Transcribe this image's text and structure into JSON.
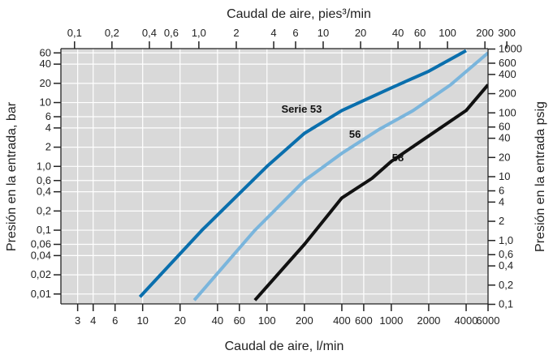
{
  "chart_data": {
    "type": "line",
    "title": "",
    "xlabel_bottom": "Caudal de aire, l/min",
    "xlabel_top": "Caudal de aire, pies³/min",
    "ylabel_left": "Presión en la entrada, bar",
    "ylabel_right": "Presión en la entrada psig",
    "xscale": "log",
    "yscale": "log",
    "grid": true,
    "xlim": [
      2.2,
      6000
    ],
    "ylim": [
      0.007,
      70
    ],
    "x_ticks_bottom": [
      3,
      4,
      6,
      10,
      20,
      40,
      60,
      100,
      200,
      400,
      600,
      1000,
      2000,
      4000,
      6000
    ],
    "x_tick_labels_bottom": [
      "3",
      "4",
      "6",
      "10",
      "20",
      "40",
      "60",
      "100",
      "200",
      "400",
      "600",
      "1000",
      "2000",
      "4000",
      "6000"
    ],
    "x_ticks_top": [
      0.1,
      0.2,
      0.4,
      0.6,
      1.0,
      2,
      4,
      6,
      10,
      20,
      40,
      60,
      100,
      200,
      300
    ],
    "x_tick_labels_top": [
      "0,1",
      "0,2",
      "0,4",
      "0,6",
      "1,0",
      "2",
      "4",
      "6",
      "10",
      "20",
      "40",
      "60",
      "100",
      "200",
      "300"
    ],
    "y_ticks_left": [
      0.01,
      0.02,
      0.04,
      0.06,
      0.1,
      0.2,
      0.4,
      0.6,
      1.0,
      2,
      4,
      6,
      10,
      20,
      40,
      60
    ],
    "y_tick_labels_left": [
      "0,01",
      "0,02",
      "0,04",
      "0,06",
      "0,1",
      "0,2",
      "0,4",
      "0,6",
      "1,0",
      "2",
      "4",
      "6",
      "10",
      "20",
      "40",
      "60"
    ],
    "y_ticks_right": [
      0.1,
      0.2,
      0.4,
      0.6,
      1.0,
      2,
      4,
      6,
      10,
      20,
      40,
      60,
      100,
      200,
      400,
      600,
      1000
    ],
    "y_tick_labels_right": [
      "0,1",
      "0,2",
      "0,4",
      "0,6",
      "1,0",
      "2",
      "4",
      "6",
      "10",
      "20",
      "40",
      "60",
      "100",
      "200",
      "400",
      "600",
      "1000"
    ],
    "series": [
      {
        "name": "Serie 53",
        "color": "#0a6fad",
        "points": [
          [
            9.5,
            0.009
          ],
          [
            30,
            0.1
          ],
          [
            100,
            1.0
          ],
          [
            200,
            3.3
          ],
          [
            400,
            7.5
          ],
          [
            1000,
            17
          ],
          [
            2000,
            31
          ],
          [
            4000,
            65
          ]
        ]
      },
      {
        "name": "56",
        "color": "#7ab5dc",
        "points": [
          [
            26,
            0.008
          ],
          [
            80,
            0.1
          ],
          [
            200,
            0.6
          ],
          [
            400,
            1.6
          ],
          [
            800,
            3.8
          ],
          [
            1500,
            7.5
          ],
          [
            3000,
            19
          ],
          [
            6000,
            60
          ]
        ]
      },
      {
        "name": "58",
        "color": "#111111",
        "points": [
          [
            80,
            0.008
          ],
          [
            200,
            0.06
          ],
          [
            400,
            0.32
          ],
          [
            700,
            0.65
          ],
          [
            1000,
            1.2
          ],
          [
            2000,
            3.0
          ],
          [
            4000,
            7.5
          ],
          [
            6000,
            19
          ]
        ]
      }
    ]
  }
}
